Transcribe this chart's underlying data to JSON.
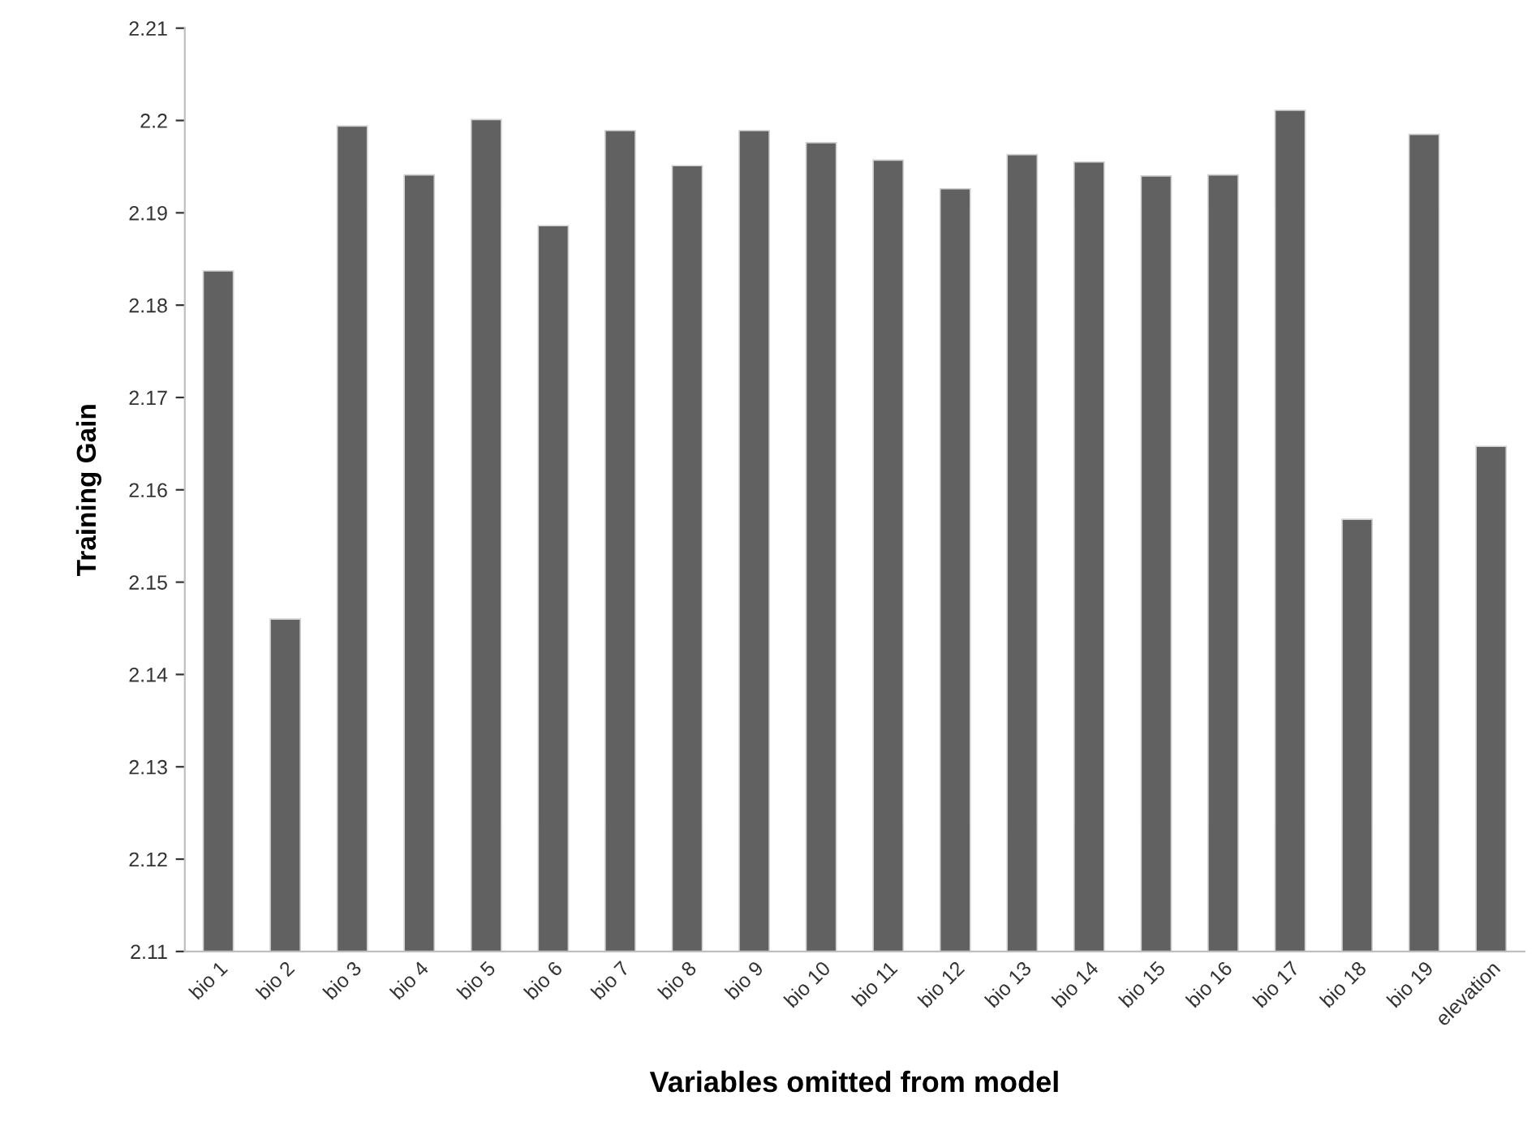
{
  "chart_data": {
    "type": "bar",
    "xlabel": "Variables omitted from model",
    "ylabel": "Training Gain",
    "categories": [
      "bio 1",
      "bio 2",
      "bio 3",
      "bio 4",
      "bio 5",
      "bio 6",
      "bio 7",
      "bio 8",
      "bio 9",
      "bio 10",
      "bio 11",
      "bio 12",
      "bio 13",
      "bio 14",
      "bio 15",
      "bio 16",
      "bio 17",
      "bio 18",
      "bio 19",
      "elevation"
    ],
    "values": [
      2.1837,
      2.146,
      2.1994,
      2.1941,
      2.2001,
      2.1886,
      2.1989,
      2.1951,
      2.1989,
      2.1976,
      2.1957,
      2.1926,
      2.1963,
      2.1955,
      2.194,
      2.1941,
      2.2011,
      2.1568,
      2.1985,
      2.1647
    ],
    "color": "#616161",
    "ylim": [
      2.11,
      2.21
    ],
    "yticks": [
      2.11,
      2.12,
      2.13,
      2.14,
      2.15,
      2.16,
      2.17,
      2.18,
      2.19,
      2.2,
      2.21
    ],
    "grid": false,
    "legend": false
  }
}
